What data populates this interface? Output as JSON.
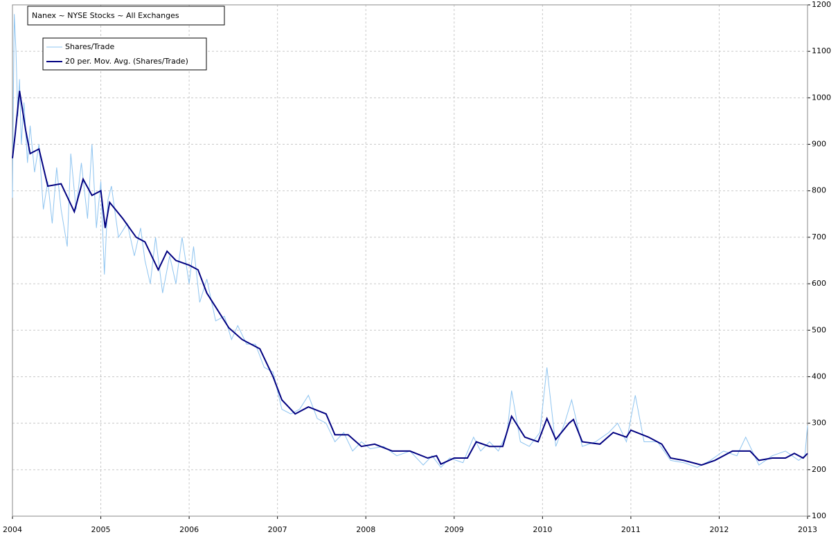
{
  "chart_data": {
    "type": "line",
    "title": "Nanex ~ NYSE Stocks ~ All Exchanges",
    "xlim": [
      2004,
      2013
    ],
    "xticks": [
      2004,
      2005,
      2006,
      2007,
      2008,
      2009,
      2010,
      2011,
      2012,
      2013
    ],
    "ylim": [
      100,
      1200
    ],
    "yticks": [
      100,
      200,
      300,
      400,
      500,
      600,
      700,
      800,
      900,
      1000,
      1100,
      1200
    ],
    "grid": true,
    "legend": "upper left",
    "series": [
      {
        "name": "Shares/Trade",
        "color": "#8ec4f0",
        "x": [
          2004.0,
          2004.01,
          2004.02,
          2004.04,
          2004.06,
          2004.08,
          2004.1,
          2004.13,
          2004.17,
          2004.2,
          2004.25,
          2004.3,
          2004.35,
          2004.4,
          2004.45,
          2004.5,
          2004.55,
          2004.62,
          2004.66,
          2004.72,
          2004.78,
          2004.85,
          2004.9,
          2004.95,
          2005.0,
          2005.04,
          2005.08,
          2005.12,
          2005.2,
          2005.3,
          2005.38,
          2005.45,
          2005.5,
          2005.56,
          2005.62,
          2005.7,
          2005.78,
          2005.85,
          2005.92,
          2006.0,
          2006.05,
          2006.12,
          2006.2,
          2006.3,
          2006.4,
          2006.48,
          2006.55,
          2006.65,
          2006.75,
          2006.85,
          2006.95,
          2007.05,
          2007.15,
          2007.25,
          2007.35,
          2007.45,
          2007.55,
          2007.65,
          2007.75,
          2007.85,
          2007.95,
          2008.05,
          2008.2,
          2008.35,
          2008.5,
          2008.65,
          2008.75,
          2008.85,
          2008.95,
          2009.1,
          2009.22,
          2009.3,
          2009.4,
          2009.5,
          2009.6,
          2009.65,
          2009.75,
          2009.85,
          2009.97,
          2010.05,
          2010.15,
          2010.25,
          2010.33,
          2010.45,
          2010.6,
          2010.75,
          2010.85,
          2010.95,
          2011.05,
          2011.15,
          2011.3,
          2011.45,
          2011.6,
          2011.75,
          2011.9,
          2012.05,
          2012.2,
          2012.3,
          2012.45,
          2012.6,
          2012.75,
          2012.9,
          2012.97,
          2013.0
        ],
        "values": [
          785,
          1000,
          1180,
          1100,
          960,
          1040,
          900,
          990,
          860,
          940,
          840,
          900,
          760,
          820,
          730,
          850,
          760,
          680,
          880,
          760,
          860,
          740,
          900,
          720,
          820,
          620,
          780,
          810,
          700,
          730,
          660,
          720,
          650,
          600,
          700,
          580,
          660,
          600,
          700,
          600,
          680,
          560,
          610,
          520,
          530,
          480,
          510,
          470,
          470,
          420,
          410,
          330,
          320,
          330,
          360,
          310,
          300,
          260,
          280,
          240,
          260,
          245,
          250,
          230,
          240,
          210,
          230,
          205,
          225,
          215,
          270,
          240,
          260,
          240,
          280,
          370,
          260,
          250,
          280,
          420,
          250,
          300,
          350,
          250,
          260,
          280,
          300,
          260,
          360,
          260,
          260,
          220,
          215,
          205,
          220,
          240,
          230,
          270,
          210,
          230,
          240,
          220,
          230,
          295
        ]
      },
      {
        "name": "20 per. Mov. Avg. (Shares/Trade)",
        "color": "#000080",
        "x": [
          2004.0,
          2004.03,
          2004.08,
          2004.15,
          2004.2,
          2004.3,
          2004.4,
          2004.55,
          2004.7,
          2004.8,
          2004.9,
          2005.0,
          2005.05,
          2005.1,
          2005.25,
          2005.4,
          2005.5,
          2005.65,
          2005.75,
          2005.85,
          2006.0,
          2006.1,
          2006.2,
          2006.3,
          2006.45,
          2006.6,
          2006.8,
          2006.95,
          2007.05,
          2007.2,
          2007.35,
          2007.55,
          2007.65,
          2007.8,
          2007.95,
          2008.1,
          2008.3,
          2008.5,
          2008.7,
          2008.8,
          2008.85,
          2009.0,
          2009.15,
          2009.25,
          2009.4,
          2009.55,
          2009.65,
          2009.8,
          2009.95,
          2010.05,
          2010.15,
          2010.3,
          2010.35,
          2010.45,
          2010.65,
          2010.8,
          2010.95,
          2011.0,
          2011.2,
          2011.35,
          2011.45,
          2011.6,
          2011.8,
          2011.95,
          2012.15,
          2012.35,
          2012.45,
          2012.6,
          2012.75,
          2012.85,
          2012.95,
          2013.0
        ],
        "values": [
          870,
          920,
          1015,
          930,
          880,
          890,
          810,
          815,
          755,
          825,
          790,
          800,
          720,
          775,
          740,
          700,
          690,
          630,
          670,
          650,
          640,
          630,
          580,
          550,
          505,
          480,
          460,
          400,
          350,
          320,
          335,
          320,
          275,
          275,
          250,
          255,
          240,
          240,
          225,
          230,
          212,
          225,
          225,
          260,
          250,
          250,
          315,
          270,
          260,
          310,
          265,
          300,
          308,
          260,
          255,
          280,
          270,
          285,
          270,
          255,
          225,
          220,
          210,
          220,
          240,
          240,
          220,
          225,
          225,
          235,
          225,
          235
        ]
      }
    ]
  }
}
